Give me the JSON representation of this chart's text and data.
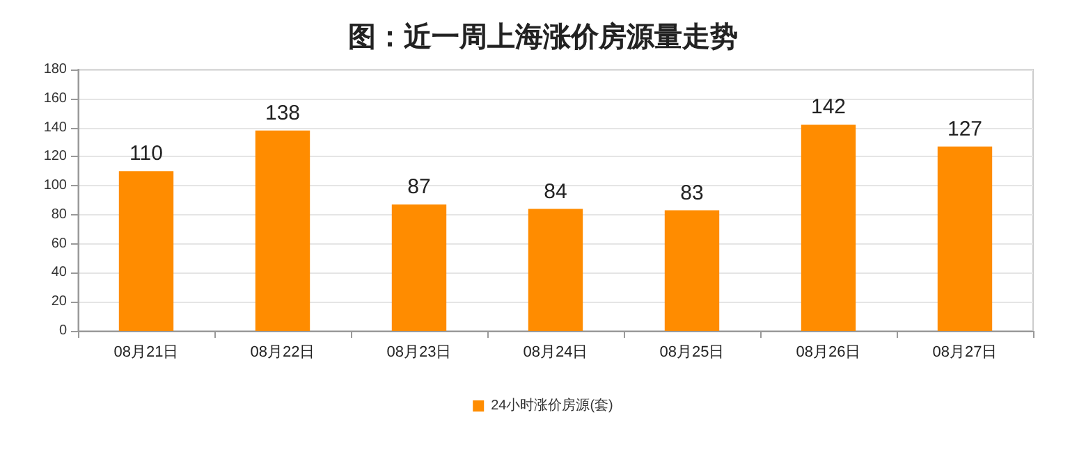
{
  "chart_data": {
    "type": "bar",
    "title": "图：近一周上海涨价房源量走势",
    "categories": [
      "08月21日",
      "08月22日",
      "08月23日",
      "08月24日",
      "08月25日",
      "08月26日",
      "08月27日"
    ],
    "series": [
      {
        "name": "24小时涨价房源(套)",
        "color": "#ff8c00",
        "values": [
          110,
          138,
          87,
          84,
          83,
          142,
          127
        ]
      }
    ],
    "ylim": [
      0,
      180
    ],
    "yticks": [
      0,
      20,
      40,
      60,
      80,
      100,
      120,
      140,
      160,
      180
    ],
    "grid": "y",
    "legend": "bottom",
    "data_labels": true
  }
}
